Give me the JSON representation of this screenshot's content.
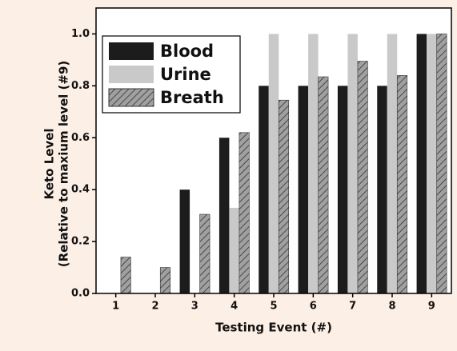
{
  "chart_data": {
    "type": "bar",
    "x_label": "Testing Event (#)",
    "y_label": [
      "Keto Level",
      "(Relative to maxium level (#9)"
    ],
    "categories": [
      "1",
      "2",
      "3",
      "4",
      "5",
      "6",
      "7",
      "8",
      "9"
    ],
    "series": [
      {
        "name": "Blood",
        "color": "#1c1c1c",
        "values": [
          0,
          0,
          0.4,
          0.6,
          0.8,
          0.8,
          0.8,
          0.8,
          1.0
        ]
      },
      {
        "name": "Urine",
        "color": "#c9c9c9",
        "values": [
          0,
          0,
          0,
          0.33,
          1.0,
          1.0,
          1.0,
          1.0,
          1.0
        ]
      },
      {
        "name": "Breath",
        "color": "#8c8c8c",
        "hatch": true,
        "values": [
          0.14,
          0.1,
          0.305,
          0.62,
          0.745,
          0.835,
          0.895,
          0.84,
          1.0
        ]
      }
    ],
    "ylim": [
      0,
      1.1
    ],
    "yticks": [
      {
        "value": 0,
        "label": "0.0"
      },
      0.2,
      0.4,
      0.6,
      0.8,
      {
        "value": 1,
        "label": "1.0"
      }
    ],
    "legend": "upper left"
  }
}
